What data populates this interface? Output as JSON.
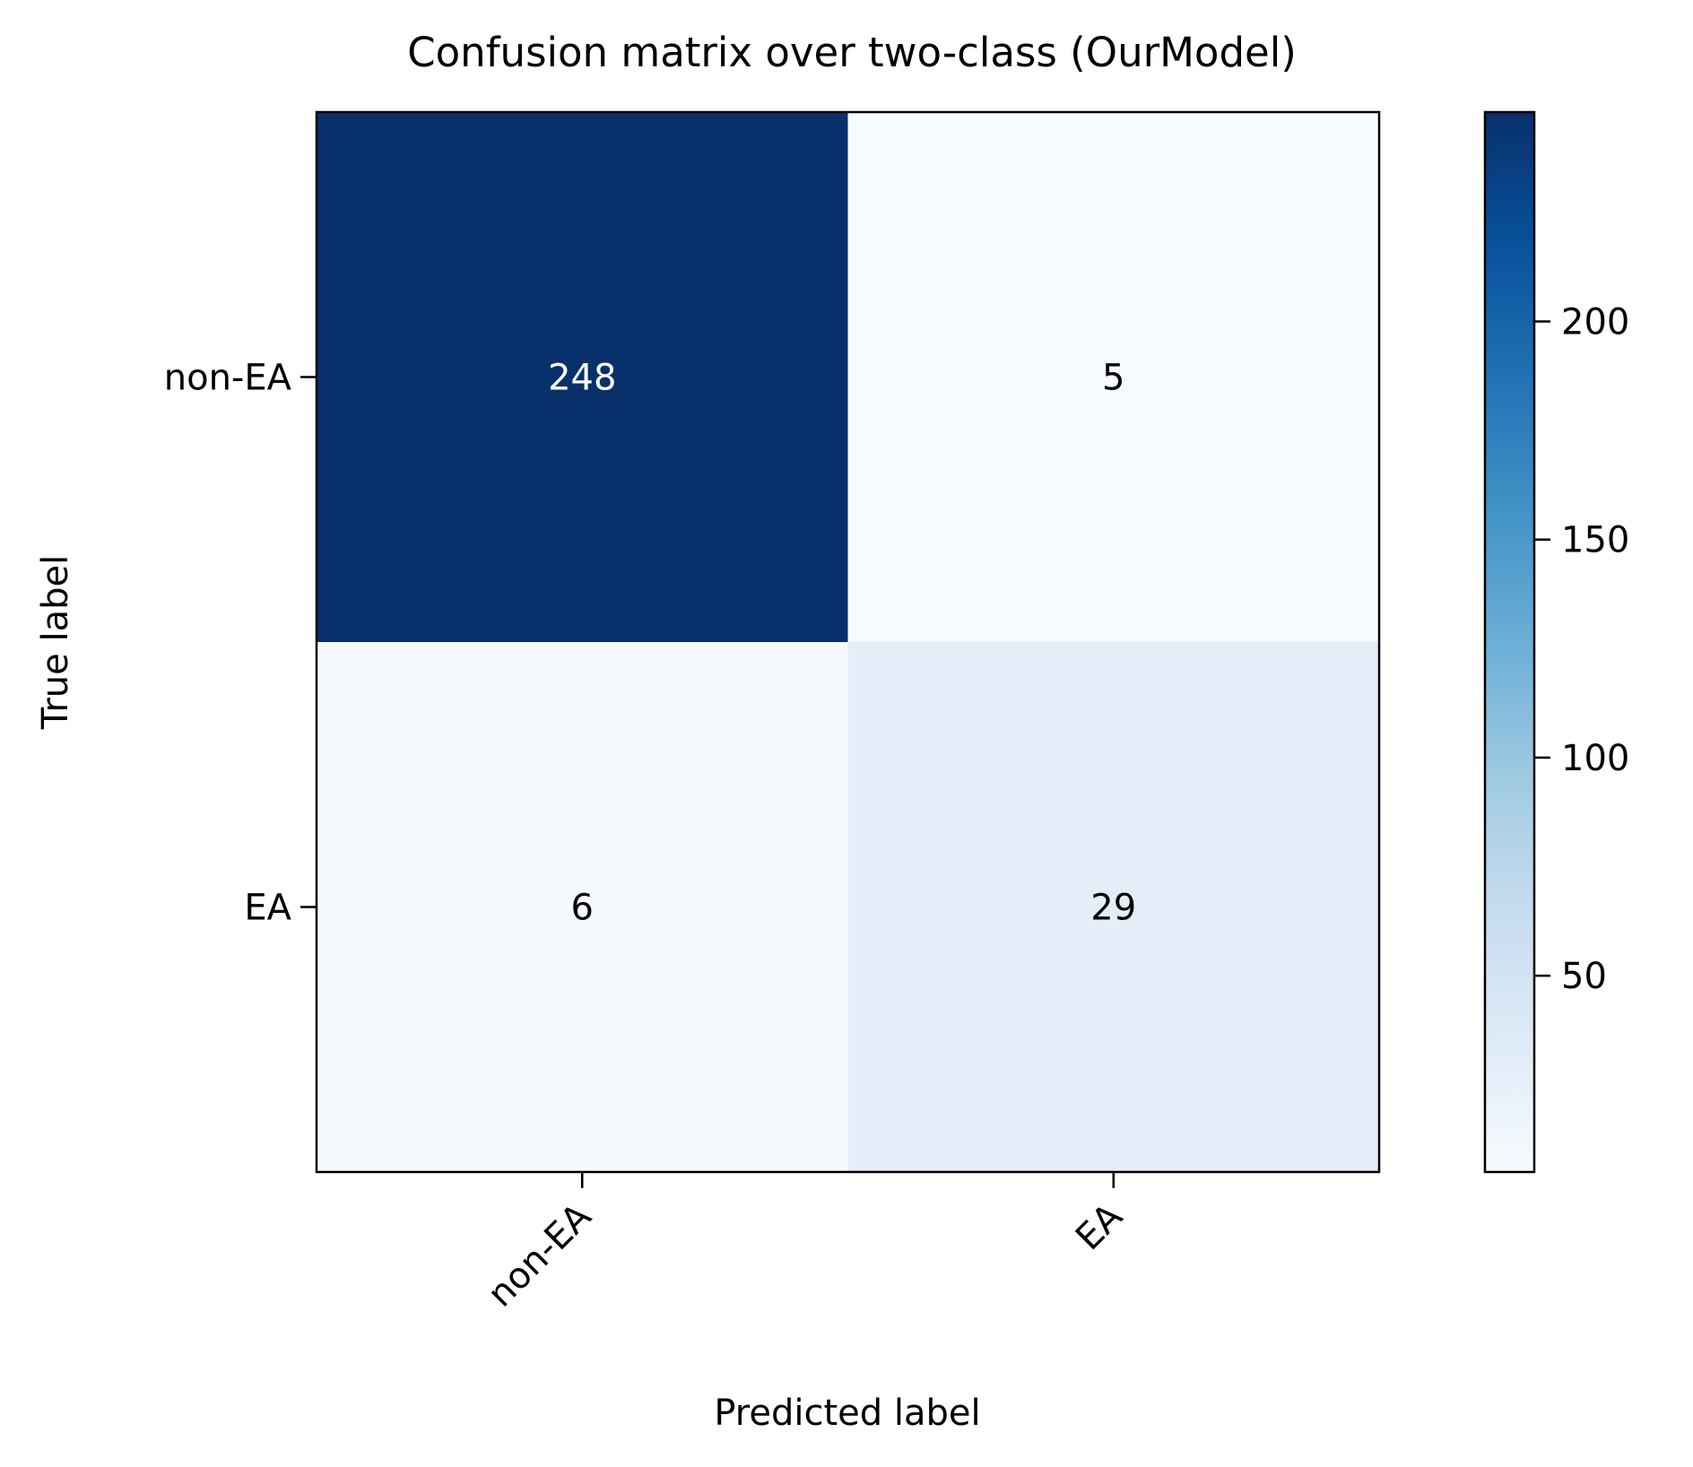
{
  "chart_data": {
    "type": "heatmap",
    "title": "Confusion matrix over two-class (OurModel)",
    "xlabel": "Predicted label",
    "ylabel": "True label",
    "x_categories": [
      "non-EA",
      "EA"
    ],
    "y_categories": [
      "non-EA",
      "EA"
    ],
    "matrix": [
      [
        248,
        5
      ],
      [
        6,
        29
      ]
    ],
    "colormap": "Blues",
    "color_min": 5,
    "color_max": 248,
    "colorbar_ticks": [
      50,
      100,
      150,
      200
    ],
    "xtick_rotation_deg": 45,
    "text_color_dark_cell": "#ffffff",
    "text_color_light_cell": "#000000",
    "grid": false,
    "legend": "none"
  }
}
